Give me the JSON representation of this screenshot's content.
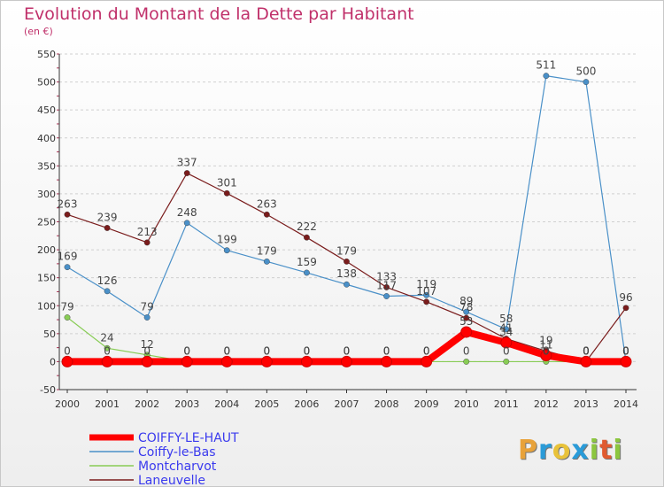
{
  "header": {
    "title": "Evolution du Montant de la Dette par Habitant",
    "subtitle": "(en €)"
  },
  "logo": {
    "text": "Proxiti",
    "letters": [
      "P",
      "r",
      "o",
      "x",
      "i",
      "t",
      "i"
    ],
    "colors": [
      "#e8a23a",
      "#2a9bd8",
      "#e8c23a",
      "#2a9bd8",
      "#8cc63f",
      "#e05a30",
      "#8cc63f"
    ]
  },
  "chart_data": {
    "type": "line",
    "title": "Evolution du Montant de la Dette par Habitant",
    "ylabel": "(en €)",
    "xlabel": "",
    "x": [
      2000,
      2001,
      2002,
      2003,
      2004,
      2005,
      2006,
      2007,
      2008,
      2009,
      2010,
      2011,
      2012,
      2013,
      2014
    ],
    "ylim": [
      -50,
      550
    ],
    "yticks": [
      -50,
      0,
      50,
      100,
      150,
      200,
      250,
      300,
      350,
      400,
      450,
      500,
      550
    ],
    "grid": "horizontal dashed",
    "legend_position": "bottom-left",
    "series": [
      {
        "name": "COIFFY-LE-HAUT",
        "color": "#ff0000",
        "values": [
          0,
          0,
          0,
          0,
          0,
          0,
          0,
          0,
          0,
          0,
          53,
          34,
          11,
          0,
          0
        ],
        "labels": [
          "0",
          "0",
          "0",
          "0",
          "0",
          "0",
          "0",
          "0",
          "0",
          "0",
          "",
          "",
          "",
          "0",
          "0"
        ]
      },
      {
        "name": "Coiffy-le-Bas",
        "color": "#4a90c8",
        "values": [
          169,
          126,
          79,
          248,
          199,
          179,
          159,
          138,
          117,
          119,
          89,
          58,
          511,
          500,
          0
        ],
        "labels": [
          "169",
          "126",
          "79",
          "248",
          "199",
          "179",
          "159",
          "138",
          "117",
          "119",
          "89",
          "58",
          "511",
          "500",
          "0"
        ]
      },
      {
        "name": "Montcharvot",
        "color": "#88cc55",
        "values": [
          79,
          24,
          12,
          0,
          0,
          0,
          0,
          0,
          0,
          0,
          0,
          0,
          0,
          0,
          0
        ],
        "labels": [
          "79",
          "24",
          "12",
          "0",
          "0",
          "0",
          "0",
          "0",
          "0",
          "0",
          "0",
          "0",
          "0",
          "0",
          "0"
        ]
      },
      {
        "name": "Laneuvelle",
        "color": "#7a1c1c",
        "values": [
          263,
          239,
          213,
          337,
          301,
          263,
          222,
          179,
          133,
          107,
          78,
          41,
          19,
          0,
          96
        ],
        "labels": [
          "263",
          "239",
          "213",
          "337",
          "301",
          "263",
          "222",
          "179",
          "133",
          "107",
          "78",
          "41",
          "19",
          "0",
          "96"
        ]
      }
    ],
    "extra_labels": [
      {
        "x": 2010,
        "y": 53,
        "text": "53"
      },
      {
        "x": 2011,
        "y": 34,
        "text": "34"
      },
      {
        "x": 2012,
        "y": 11,
        "text": "11"
      },
      {
        "x": 2012,
        "y": 0,
        "text": "0"
      },
      {
        "x": 2013,
        "y": 0,
        "text": "0"
      },
      {
        "x": 2014,
        "y": 0,
        "text": "0"
      }
    ]
  }
}
